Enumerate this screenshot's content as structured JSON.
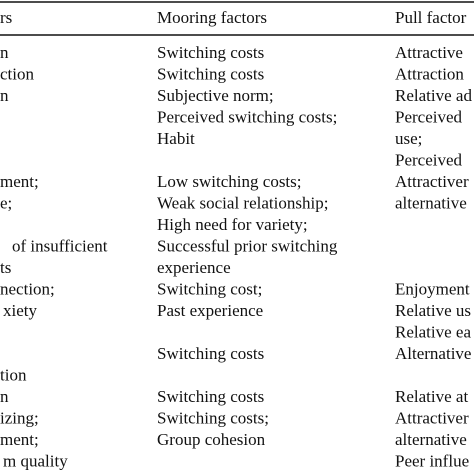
{
  "table": {
    "header": [
      "rs",
      "Mooring factors",
      "Pull factor"
    ],
    "rows": [
      [
        "n",
        "Switching costs",
        "Attractive"
      ],
      [
        "ction",
        "Switching costs",
        "Attraction"
      ],
      [
        "n",
        "Subjective norm;",
        "Relative ad"
      ],
      [
        null,
        "Perceived switching costs;",
        "Perceived"
      ],
      [
        null,
        "Habit",
        "use;"
      ],
      [
        null,
        null,
        "Perceived"
      ],
      [
        "ment;",
        "Low switching costs;",
        "Attractiver"
      ],
      [
        "e;",
        "Weak social relationship;",
        "alternative"
      ],
      [
        null,
        "High need for variety;",
        null
      ],
      [
        "of insufficient",
        "Successful prior switching",
        null
      ],
      [
        "ts",
        "experience",
        null
      ],
      [
        "nection;",
        "Switching cost;",
        "Enjoyment"
      ],
      [
        "xiety",
        "Past experience",
        "Relative us"
      ],
      [
        null,
        null,
        "Relative ea"
      ],
      [
        null,
        "Switching costs",
        "Alternative"
      ],
      [
        "tion",
        null,
        null
      ],
      [
        "n",
        "Switching costs",
        "Relative at"
      ],
      [
        "izing;",
        "Switching costs;",
        "Attractiver"
      ],
      [
        "ment;",
        "Group cohesion",
        "alternative"
      ],
      [
        "m quality",
        null,
        "Peer influe"
      ]
    ]
  }
}
